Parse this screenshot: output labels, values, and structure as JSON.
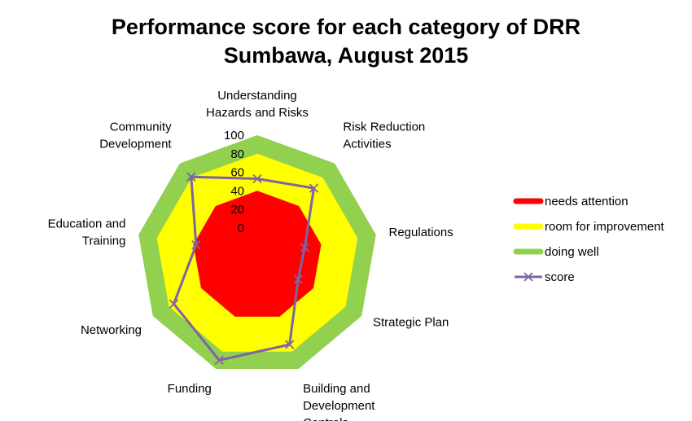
{
  "chart_data": {
    "type": "radar",
    "title": [
      "Performance score for each category of DRR",
      "Sumbawa, August 2015"
    ],
    "categories": [
      [
        "Understanding",
        "Hazards and Risks"
      ],
      [
        "Risk Reduction",
        "Activities"
      ],
      [
        "Regulations"
      ],
      [
        "Strategic Plan"
      ],
      [
        "Building and",
        "Development",
        "Controls"
      ],
      [
        "Funding"
      ],
      [
        "Networking"
      ],
      [
        "Education and",
        "Training"
      ],
      [
        "Community",
        "Development"
      ]
    ],
    "radial_ticks": [
      0,
      20,
      40,
      60,
      80,
      100
    ],
    "rlim": [
      -30,
      100
    ],
    "bands": [
      {
        "name": "needs attention",
        "value": 40,
        "color": "#ff0000"
      },
      {
        "name": "room for improvement",
        "value": 80,
        "color": "#ffff00"
      },
      {
        "name": "doing well",
        "value": 100,
        "color": "#92d050"
      }
    ],
    "series": [
      {
        "name": "score",
        "values": [
          53,
          65,
          22,
          21,
          72,
          90,
          74,
          37,
          81
        ],
        "color": "#8064a2"
      }
    ],
    "legend_position": "right"
  }
}
